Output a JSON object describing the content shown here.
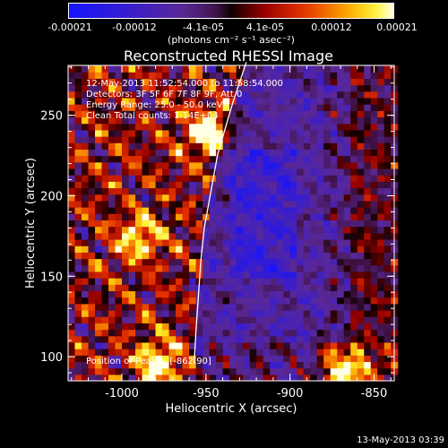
{
  "colorbar": {
    "ticks": [
      "-0.00021",
      "-0.00012",
      "-4.1e-05",
      "4.1e-05",
      "0.00012",
      "0.00021"
    ],
    "unit": "(photons cm⁻² s⁻¹ asec⁻²)"
  },
  "chart_data": {
    "type": "heatmap",
    "title": "Reconstructed RHESSI Image",
    "xlabel": "Heliocentric X (arcsec)",
    "ylabel": "Heliocentric Y (arcsec)",
    "xlim": [
      -1032,
      -838
    ],
    "ylim": [
      85,
      281
    ],
    "x_ticks": [
      -1000,
      -950,
      -900,
      -850
    ],
    "y_ticks": [
      100,
      150,
      200,
      250
    ],
    "x_tick_labels": [
      "-1000",
      "-950",
      "-900",
      "-850"
    ],
    "y_tick_labels": [
      "100",
      "150",
      "200",
      "250"
    ],
    "colorbar_range": [
      -0.00021,
      0.00021
    ],
    "peak_position": [
      -862,
      90
    ],
    "bright_sources": [
      {
        "x": -948,
        "y": 240,
        "intensity": 0.98
      },
      {
        "x": -868,
        "y": 92,
        "intensity": 1.0
      },
      {
        "x": -978,
        "y": 96,
        "intensity": 0.85
      },
      {
        "x": -990,
        "y": 175,
        "intensity": 0.75
      }
    ],
    "limb_curve": [
      [
        -926,
        283
      ],
      [
        -934,
        258
      ],
      [
        -943,
        226
      ],
      [
        -951,
        180
      ],
      [
        -953,
        160
      ],
      [
        -956,
        115
      ],
      [
        -957,
        96
      ]
    ],
    "annotations": [
      "12-May-2013 11:52:54.000 to 11:58:54.000",
      "Detectors: 3F 5F 6F 7F 8F 9F, Att 0",
      "Energy Range: 25.0 - 50.0 keV",
      "Clean    Total counts: 1.14E+04"
    ],
    "peak_label": "Position of Peak = [-862,90]"
  },
  "timestamp": "13-May-2013 03:39"
}
